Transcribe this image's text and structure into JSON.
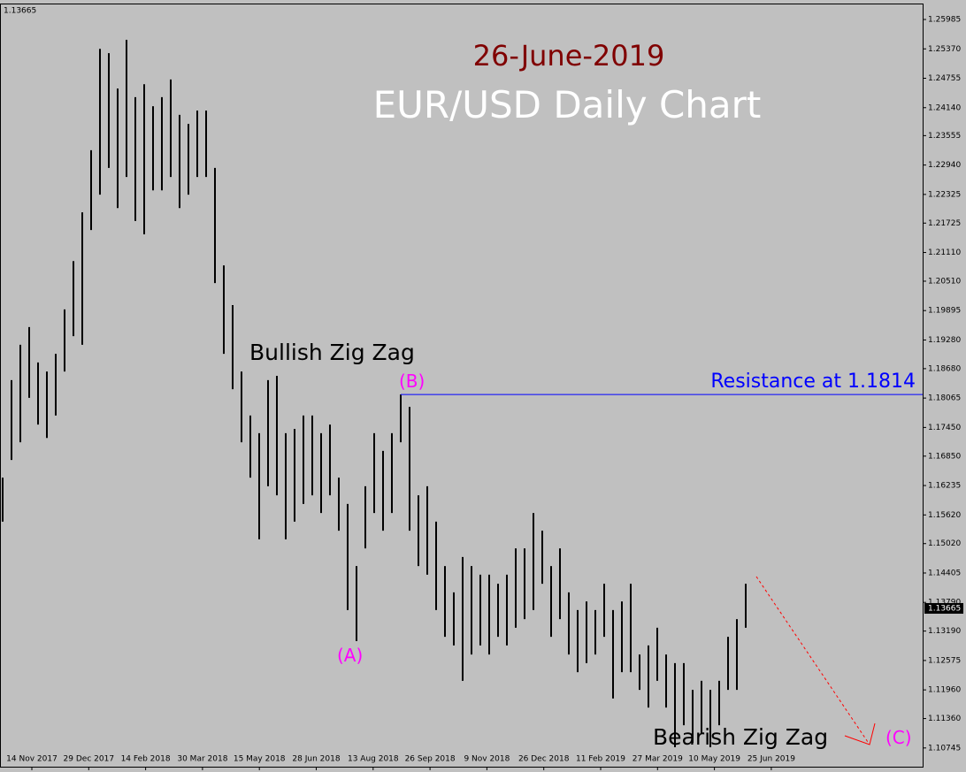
{
  "chart_data": {
    "type": "ohlc",
    "title": "26-June-2019",
    "subtitle": "EUR/USD Daily Chart",
    "color": "#000000",
    "categories": [
      "14 Nov 2017",
      "29 Dec 2017",
      "14 Feb 2018",
      "30 Mar 2018",
      "15 May 2018",
      "28 Jun 2018",
      "13 Aug 2018",
      "26 Sep 2018",
      "9 Nov 2018",
      "26 Dec 2018",
      "11 Feb 2019",
      "27 Mar 2019",
      "10 May 2019",
      "25 Jun 2019"
    ],
    "high": [
      1.164,
      1.1844,
      1.1918,
      1.1955,
      1.1881,
      1.1862,
      1.1899,
      1.1992,
      1.2093,
      1.2195,
      1.2325,
      1.2537,
      1.2528,
      1.2454,
      1.2556,
      1.2436,
      1.2463,
      1.2417,
      1.2436,
      1.2473,
      1.2399,
      1.238,
      1.2408,
      1.2408,
      1.2288,
      1.2084,
      1.2001,
      1.1862,
      1.177,
      1.1733,
      1.1844,
      1.1853,
      1.1733,
      1.1742,
      1.177,
      1.177,
      1.1733,
      1.1751,
      1.164,
      1.1585,
      1.1455,
      1.1622,
      1.1733,
      1.1696,
      1.1733,
      1.1814,
      1.1788,
      1.1603,
      1.1622,
      1.1548,
      1.1455,
      1.14,
      1.1474,
      1.1455,
      1.1437,
      1.1437,
      1.1418,
      1.1437,
      1.1492,
      1.1492,
      1.1566,
      1.1529,
      1.1455,
      1.1492,
      1.14,
      1.1363,
      1.1381,
      1.1363,
      1.1418,
      1.1363,
      1.1381,
      1.1418,
      1.127,
      1.1289,
      1.1326,
      1.127,
      1.1252,
      1.1252,
      1.1196,
      1.1215,
      1.1196,
      1.1215,
      1.1307,
      1.1344,
      1.1418
    ],
    "low": [
      1.1548,
      1.1677,
      1.1714,
      1.1807,
      1.1751,
      1.1723,
      1.177,
      1.1862,
      1.1936,
      1.1918,
      1.2158,
      1.2232,
      1.2288,
      1.2204,
      1.2269,
      1.2177,
      1.2149,
      1.2241,
      1.2241,
      1.2269,
      1.2204,
      1.2232,
      1.2269,
      1.2269,
      1.2047,
      1.1899,
      1.1825,
      1.1714,
      1.164,
      1.1511,
      1.1622,
      1.1603,
      1.1511,
      1.1548,
      1.1585,
      1.1603,
      1.1566,
      1.1603,
      1.1529,
      1.1363,
      1.1298,
      1.1492,
      1.1566,
      1.1529,
      1.1566,
      1.1714,
      1.1529,
      1.1455,
      1.1437,
      1.1363,
      1.1307,
      1.1289,
      1.1215,
      1.127,
      1.1289,
      1.127,
      1.1307,
      1.1289,
      1.1326,
      1.1344,
      1.1363,
      1.1418,
      1.1307,
      1.1344,
      1.127,
      1.1233,
      1.1252,
      1.127,
      1.1307,
      1.1178,
      1.1233,
      1.1233,
      1.1196,
      1.1159,
      1.1215,
      1.1159,
      1.1076,
      1.1122,
      1.1085,
      1.1104,
      1.1076,
      1.1122,
      1.1196,
      1.1196,
      1.1326
    ],
    "ylim": [
      1.1039,
      1.263
    ],
    "yticks": [
      1.25985,
      {
        "value": 1.2537,
        "label": "1.25370"
      },
      1.24755,
      {
        "value": 1.2414,
        "label": "1.24140"
      },
      1.23555,
      {
        "value": 1.2294,
        "label": "1.22940"
      },
      1.22325,
      1.21725,
      {
        "value": 1.2111,
        "label": "1.21110"
      },
      {
        "value": 1.2051,
        "label": "1.20510"
      },
      1.19895,
      {
        "value": 1.1928,
        "label": "1.19280"
      },
      {
        "value": 1.1868,
        "label": "1.18680"
      },
      1.18065,
      {
        "value": 1.1745,
        "label": "1.17450"
      },
      {
        "value": 1.1685,
        "label": "1.16850"
      },
      1.16235,
      {
        "value": 1.1562,
        "label": "1.15620"
      },
      {
        "value": 1.1502,
        "label": "1.15020"
      },
      1.14405,
      {
        "value": 1.1379,
        "label": "1.13790"
      },
      {
        "value": 1.1319,
        "label": "1.13190"
      },
      1.12575,
      {
        "value": 1.1196,
        "label": "1.11960"
      },
      {
        "value": 1.1136,
        "label": "1.11360"
      },
      1.10745
    ],
    "last_price": 1.13665,
    "resistance": 1.1814,
    "resistance_color": "#0000ff",
    "annotations": {
      "bullish": "Bullish Zig Zag",
      "bearish": "Bearish Zig Zag",
      "a": "(A)",
      "b": "(B)",
      "c": "(C)",
      "resistance": "Resistance at 1.1814"
    }
  }
}
